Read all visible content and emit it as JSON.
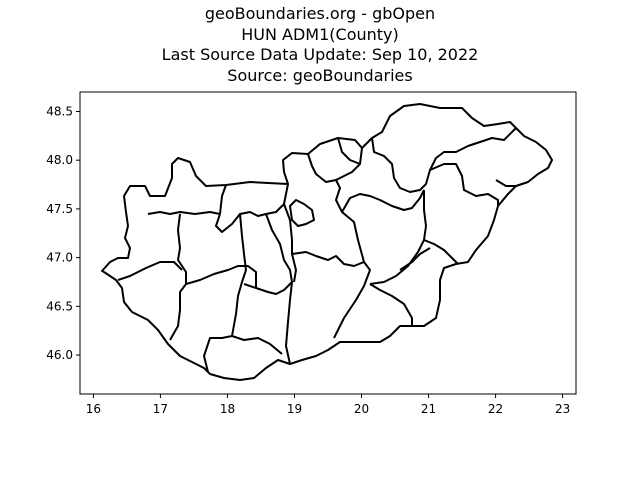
{
  "title": {
    "line1": "geoBoundaries.org - gbOpen",
    "line2": "HUN ADM1(County)",
    "line3": "Last Source Data Update: Sep 10, 2022",
    "line4": "Source: geoBoundaries"
  },
  "chart_data": {
    "type": "map",
    "xlim": [
      15.8,
      23.2
    ],
    "ylim": [
      45.6,
      48.7
    ],
    "xticks": [
      "16",
      "17",
      "18",
      "19",
      "20",
      "21",
      "22",
      "23"
    ],
    "yticks": [
      "46.0",
      "46.5",
      "47.0",
      "47.5",
      "48.0",
      "48.5"
    ],
    "xtick_values": [
      16,
      17,
      18,
      19,
      20,
      21,
      22,
      23
    ],
    "ytick_values": [
      46.0,
      46.5,
      47.0,
      47.5,
      48.0,
      48.5
    ],
    "grid": false,
    "region_count": 20,
    "stroke_color": "#000000",
    "background": "#ffffff"
  }
}
